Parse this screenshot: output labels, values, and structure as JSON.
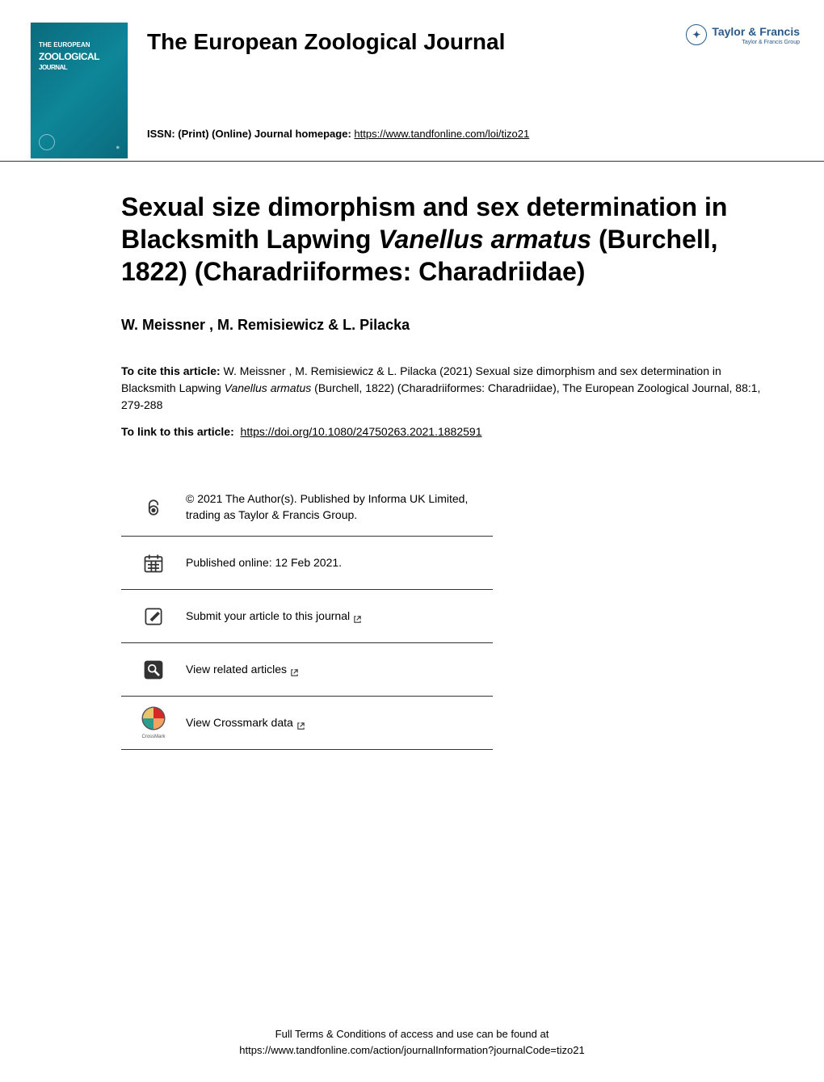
{
  "publisher": {
    "name": "Taylor & Francis",
    "tagline": "Taylor & Francis Group",
    "logo_color": "#2a5a8a"
  },
  "journal": {
    "title": "The European Zoological Journal",
    "cover_top_line": "THE EUROPEAN",
    "cover_main_line": "ZOOLOGICAL",
    "cover_sub_line": "JOURNAL",
    "cover_bg_color": "#0a7b8c",
    "issn_label": "ISSN: (Print) (Online) Journal homepage:",
    "homepage_url": "https://www.tandfonline.com/loi/tizo21"
  },
  "article": {
    "title_part1": "Sexual size dimorphism and sex determination in Blacksmith Lapwing ",
    "title_italic": "Vanellus armatus",
    "title_part2": " (Burchell, 1822) (Charadriiformes: Charadriidae)",
    "authors": "W. Meissner , M. Remisiewicz & L. Pilacka",
    "cite_label": "To cite this article:",
    "cite_text_part1": " W. Meissner , M. Remisiewicz & L. Pilacka (2021) Sexual size dimorphism and sex determination in Blacksmith Lapwing ",
    "cite_italic": "Vanellus armatus",
    "cite_text_part2": " (Burchell, 1822) (Charadriiformes: Charadriidae), The European Zoological Journal, 88:1, 279-288",
    "doi_label": "To link to this article:",
    "doi_url": "https://doi.org/10.1080/24750263.2021.1882591"
  },
  "actions": [
    {
      "icon": "open-access",
      "text": "© 2021 The Author(s). Published by Informa UK Limited, trading as Taylor & Francis Group.",
      "interactable": false,
      "external": false
    },
    {
      "icon": "calendar",
      "text": "Published online: 12 Feb 2021.",
      "interactable": false,
      "external": false
    },
    {
      "icon": "submit",
      "text": "Submit your article to this journal",
      "interactable": true,
      "external": true
    },
    {
      "icon": "related",
      "text": "View related articles",
      "interactable": true,
      "external": true
    },
    {
      "icon": "crossmark",
      "text": "View Crossmark data",
      "interactable": true,
      "external": true
    }
  ],
  "footer": {
    "line1": "Full Terms & Conditions of access and use can be found at",
    "line2": "https://www.tandfonline.com/action/journalInformation?journalCode=tizo21"
  }
}
